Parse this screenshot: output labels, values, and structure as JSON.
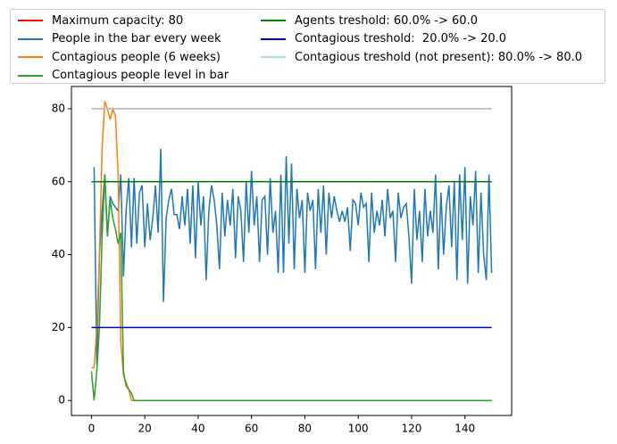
{
  "chart_data": {
    "type": "line",
    "xlim": [
      -7.5,
      157.5
    ],
    "xticks": [
      0,
      20,
      40,
      60,
      80,
      100,
      120,
      140
    ],
    "ylim": [
      -4.1,
      86.1
    ],
    "yticks": [
      0,
      20,
      40,
      60,
      80
    ],
    "legend": "top-outside",
    "series": [
      {
        "name": "Maximum capacity: 80",
        "color": "#ff0000",
        "x": [
          0,
          150
        ],
        "values": [
          80,
          80
        ]
      },
      {
        "name": "People in the bar every week",
        "color": "#1f77b4",
        "x": [
          1,
          2,
          3,
          4,
          5,
          6,
          7,
          8,
          9,
          10,
          11,
          12,
          13,
          14,
          15,
          16,
          17,
          18,
          19,
          20,
          21,
          22,
          23,
          24,
          25,
          26,
          27,
          28,
          29,
          30,
          31,
          32,
          33,
          34,
          35,
          36,
          37,
          38,
          39,
          40,
          41,
          42,
          43,
          44,
          45,
          46,
          47,
          48,
          49,
          50,
          51,
          52,
          53,
          54,
          55,
          56,
          57,
          58,
          59,
          60,
          61,
          62,
          63,
          64,
          65,
          66,
          67,
          68,
          69,
          70,
          71,
          72,
          73,
          74,
          75,
          76,
          77,
          78,
          79,
          80,
          81,
          82,
          83,
          84,
          85,
          86,
          87,
          88,
          89,
          90,
          91,
          92,
          93,
          94,
          95,
          96,
          97,
          98,
          99,
          100,
          101,
          102,
          103,
          104,
          105,
          106,
          107,
          108,
          109,
          110,
          111,
          112,
          113,
          114,
          115,
          116,
          117,
          118,
          119,
          120,
          121,
          122,
          123,
          124,
          125,
          126,
          127,
          128,
          129,
          130,
          131,
          132,
          133,
          134,
          135,
          136,
          137,
          138,
          139,
          140,
          141,
          142,
          143,
          144,
          145,
          146,
          147,
          148,
          149,
          150
        ],
        "values": [
          64,
          10,
          40,
          52,
          62,
          45,
          56,
          54,
          53,
          52,
          62,
          34,
          52,
          61,
          42,
          61,
          43,
          57,
          59,
          42,
          54,
          44,
          50,
          59,
          46,
          69,
          27,
          50,
          55,
          58,
          51,
          51,
          47,
          56,
          48,
          58,
          43,
          59,
          39,
          60,
          48,
          56,
          33,
          52,
          59,
          55,
          48,
          36,
          57,
          45,
          55,
          48,
          58,
          39,
          56,
          52,
          38,
          60,
          46,
          63,
          48,
          56,
          38,
          55,
          56,
          40,
          61,
          46,
          52,
          35,
          62,
          35,
          67,
          43,
          65,
          36,
          58,
          50,
          55,
          35,
          57,
          52,
          55,
          36,
          58,
          46,
          59,
          40,
          57,
          50,
          56,
          52,
          49,
          52,
          49,
          53,
          41,
          55,
          54,
          48,
          57,
          53,
          54,
          38,
          57,
          46,
          52,
          48,
          55,
          45,
          58,
          50,
          52,
          38,
          57,
          50,
          53,
          54,
          45,
          32,
          58,
          44,
          52,
          38,
          58,
          45,
          52,
          46,
          62,
          36,
          57,
          40,
          53,
          59,
          42,
          60,
          33,
          62,
          44,
          64,
          32,
          56,
          48,
          63,
          35,
          57,
          40,
          33,
          62,
          35
        ],
        "values_end": null
      },
      {
        "name": "Contagious people (6 weeks)",
        "color": "#ff7f0e",
        "x": [
          0,
          1,
          2,
          3,
          4,
          5,
          6,
          7,
          8,
          9,
          10,
          11,
          12,
          13,
          14,
          15,
          16,
          150
        ],
        "values": [
          9,
          9,
          20,
          40,
          69,
          82,
          80,
          77,
          80,
          78,
          62,
          16,
          7,
          5,
          3,
          0,
          0,
          0
        ]
      },
      {
        "name": "Contagious people level in bar",
        "color": "#2ca02c",
        "x": [
          0,
          1,
          2,
          3,
          4,
          5,
          6,
          7,
          8,
          9,
          10,
          11,
          12,
          13,
          14,
          15,
          16,
          150
        ],
        "values": [
          8,
          0,
          8,
          20,
          45,
          62,
          45,
          55,
          50,
          47,
          43,
          46,
          8,
          4,
          3,
          2,
          0,
          0
        ]
      },
      {
        "name": "Agents treshold: 60.0% -> 60.0",
        "color": "#008000",
        "x": [
          0,
          150
        ],
        "values": [
          60,
          60
        ]
      },
      {
        "name": "Contagious treshold:  20.0% -> 20.0",
        "color": "#0000cc",
        "x": [
          0,
          150
        ],
        "values": [
          20,
          20
        ]
      },
      {
        "name": "Contagious treshold (not present): 80.0% -> 80.0",
        "color": "#add8e6",
        "x": [
          0,
          150
        ],
        "values": [
          80,
          80
        ]
      }
    ]
  }
}
